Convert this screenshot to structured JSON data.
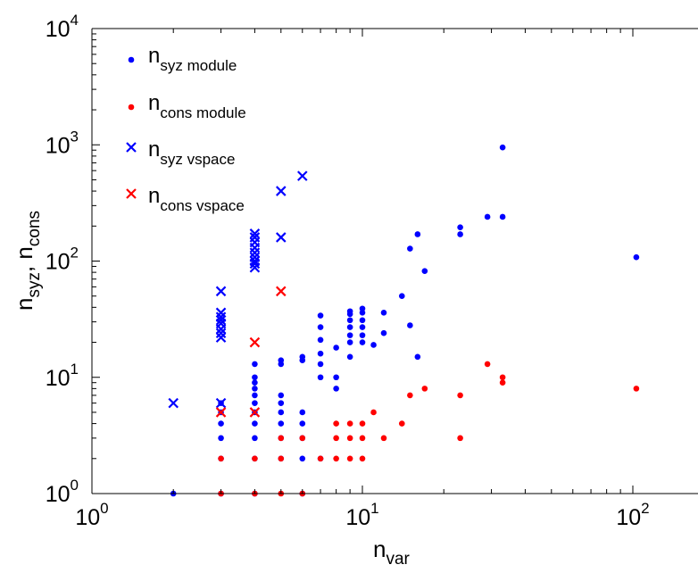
{
  "chart_data": {
    "type": "scatter",
    "x_scale": "log",
    "y_scale": "log",
    "xlim": [
      1,
      200
    ],
    "ylim": [
      1,
      10000
    ],
    "grid": false,
    "legend_position": "top-left",
    "xlabel": {
      "base": "n",
      "sub": "var"
    },
    "ylabel": {
      "base1": "n",
      "sub1": "syz",
      "sep": ", ",
      "base2": "n",
      "sub2": "cons"
    },
    "x_ticks": [
      {
        "value": 1,
        "base": "10",
        "exp": "0"
      },
      {
        "value": 10,
        "base": "10",
        "exp": "1"
      },
      {
        "value": 100,
        "base": "10",
        "exp": "2"
      }
    ],
    "y_ticks": [
      {
        "value": 1,
        "base": "10",
        "exp": "0"
      },
      {
        "value": 10,
        "base": "10",
        "exp": "1"
      },
      {
        "value": 100,
        "base": "10",
        "exp": "2"
      },
      {
        "value": 1000,
        "base": "10",
        "exp": "3"
      },
      {
        "value": 10000,
        "base": "10",
        "exp": "4"
      }
    ],
    "series": [
      {
        "base": "n",
        "sub": "syz module",
        "color": "#0000ff",
        "marker": "dot",
        "points": [
          [
            2,
            1
          ],
          [
            3,
            1
          ],
          [
            3,
            2
          ],
          [
            3,
            3
          ],
          [
            3,
            4
          ],
          [
            3,
            5
          ],
          [
            3,
            6
          ],
          [
            4,
            1
          ],
          [
            4,
            2
          ],
          [
            4,
            3
          ],
          [
            4,
            4
          ],
          [
            4,
            5
          ],
          [
            4,
            6
          ],
          [
            4,
            7
          ],
          [
            4,
            8
          ],
          [
            4,
            9
          ],
          [
            4,
            10
          ],
          [
            4,
            13
          ],
          [
            5,
            2
          ],
          [
            5,
            3
          ],
          [
            5,
            4
          ],
          [
            5,
            5
          ],
          [
            5,
            6
          ],
          [
            5,
            7
          ],
          [
            5,
            13
          ],
          [
            5,
            14
          ],
          [
            6,
            1
          ],
          [
            6,
            2
          ],
          [
            6,
            3
          ],
          [
            6,
            4
          ],
          [
            6,
            5
          ],
          [
            6,
            14
          ],
          [
            6,
            15
          ],
          [
            7,
            2
          ],
          [
            7,
            10
          ],
          [
            7,
            13
          ],
          [
            7,
            16
          ],
          [
            7,
            21
          ],
          [
            7,
            27
          ],
          [
            7,
            34
          ],
          [
            8,
            8
          ],
          [
            8,
            10
          ],
          [
            8,
            18
          ],
          [
            9,
            15
          ],
          [
            9,
            20
          ],
          [
            9,
            23
          ],
          [
            9,
            27
          ],
          [
            9,
            31
          ],
          [
            9,
            35
          ],
          [
            9,
            37
          ],
          [
            10,
            20
          ],
          [
            10,
            23
          ],
          [
            10,
            27
          ],
          [
            10,
            31
          ],
          [
            10,
            36
          ],
          [
            10,
            39
          ],
          [
            11,
            19
          ],
          [
            12,
            24
          ],
          [
            12,
            36
          ],
          [
            14,
            50
          ],
          [
            15,
            28
          ],
          [
            15,
            128
          ],
          [
            16,
            15
          ],
          [
            16,
            170
          ],
          [
            17,
            82
          ],
          [
            23,
            170
          ],
          [
            23,
            195
          ],
          [
            29,
            240
          ],
          [
            33,
            240
          ],
          [
            33,
            950
          ],
          [
            103,
            108
          ]
        ]
      },
      {
        "base": "n",
        "sub": "cons module",
        "color": "#ff0000",
        "marker": "dot",
        "points": [
          [
            3,
            1
          ],
          [
            3,
            2
          ],
          [
            4,
            1
          ],
          [
            4,
            2
          ],
          [
            5,
            1
          ],
          [
            5,
            2
          ],
          [
            5,
            3
          ],
          [
            6,
            1
          ],
          [
            6,
            3
          ],
          [
            7,
            2
          ],
          [
            8,
            2
          ],
          [
            8,
            3
          ],
          [
            8,
            4
          ],
          [
            9,
            2
          ],
          [
            9,
            3
          ],
          [
            9,
            4
          ],
          [
            10,
            2
          ],
          [
            10,
            3
          ],
          [
            10,
            4
          ],
          [
            11,
            5
          ],
          [
            12,
            3
          ],
          [
            14,
            4
          ],
          [
            15,
            7
          ],
          [
            17,
            8
          ],
          [
            23,
            3
          ],
          [
            23,
            7
          ],
          [
            29,
            13
          ],
          [
            33,
            9
          ],
          [
            33,
            10
          ],
          [
            103,
            8
          ]
        ]
      },
      {
        "base": "n",
        "sub": "syz vspace",
        "color": "#0000ff",
        "marker": "x",
        "points": [
          [
            2,
            6
          ],
          [
            3,
            6
          ],
          [
            3,
            22
          ],
          [
            3,
            24
          ],
          [
            3,
            26
          ],
          [
            3,
            29
          ],
          [
            3,
            31
          ],
          [
            3,
            33
          ],
          [
            3,
            36
          ],
          [
            3,
            55
          ],
          [
            4,
            88
          ],
          [
            4,
            95
          ],
          [
            4,
            100
          ],
          [
            4,
            108
          ],
          [
            4,
            118
          ],
          [
            4,
            130
          ],
          [
            4,
            145
          ],
          [
            4,
            160
          ],
          [
            4,
            172
          ],
          [
            5,
            160
          ],
          [
            5,
            400
          ],
          [
            6,
            540
          ]
        ]
      },
      {
        "base": "n",
        "sub": "cons vspace",
        "color": "#ff0000",
        "marker": "x",
        "points": [
          [
            3,
            5
          ],
          [
            4,
            5
          ],
          [
            4,
            20
          ],
          [
            5,
            55
          ]
        ]
      }
    ]
  }
}
